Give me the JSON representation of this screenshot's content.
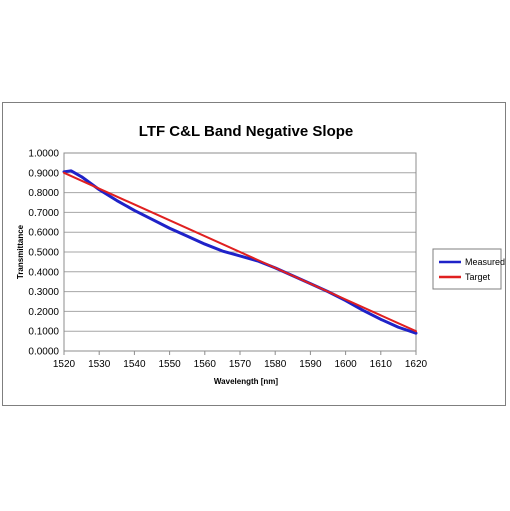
{
  "chart_data": {
    "type": "line",
    "title": "LTF C&L Band Negative Slope",
    "xlabel": "Wavelength [nm]",
    "ylabel": "Transmittance",
    "xlim": [
      1520,
      1620
    ],
    "ylim": [
      0,
      1
    ],
    "x_ticks": [
      "1520",
      "1530",
      "1540",
      "1550",
      "1560",
      "1570",
      "1580",
      "1590",
      "1600",
      "1610",
      "1620"
    ],
    "y_ticks": [
      "0.0000",
      "0.1000",
      "0.2000",
      "0.3000",
      "0.4000",
      "0.5000",
      "0.6000",
      "0.7000",
      "0.8000",
      "0.9000",
      "1.0000"
    ],
    "grid": "horizontal",
    "legend_position": "right",
    "series": [
      {
        "name": "Measured",
        "color": "#1f22c8",
        "x": [
          1520,
          1522,
          1525,
          1530,
          1535,
          1540,
          1545,
          1550,
          1555,
          1560,
          1565,
          1570,
          1575,
          1580,
          1585,
          1590,
          1595,
          1600,
          1605,
          1610,
          1615,
          1620
        ],
        "values": [
          0.905,
          0.91,
          0.88,
          0.815,
          0.76,
          0.71,
          0.665,
          0.62,
          0.58,
          0.54,
          0.505,
          0.48,
          0.455,
          0.42,
          0.38,
          0.34,
          0.3,
          0.255,
          0.205,
          0.16,
          0.12,
          0.09
        ]
      },
      {
        "name": "Target",
        "color": "#e02020",
        "x": [
          1520,
          1620
        ],
        "values": [
          0.9,
          0.1
        ]
      }
    ]
  }
}
